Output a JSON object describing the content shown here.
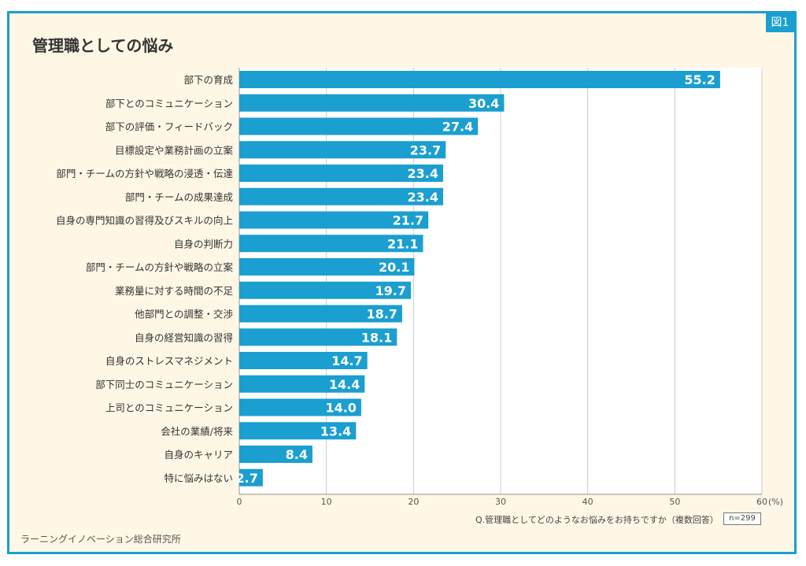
{
  "figure_label": "図1",
  "title": "管理職としての悩み",
  "question": "Q.管理職としてどのようなお悩みをお持ちですか（複数回答）",
  "sample_size": "n=299",
  "source": "ラーニングイノベーション総合研究所",
  "colors": {
    "bar": "#1a9fd0",
    "frame": "#1a9fd0",
    "background": "#fff7e6",
    "plot_background": "#ffffff",
    "grid": "#cccccc",
    "label_text": "#333333",
    "value_text": "#ffffff"
  },
  "chart_data": {
    "type": "bar",
    "orientation": "horizontal",
    "categories": [
      "部下の育成",
      "部下とのコミュニケーション",
      "部下の評価・フィードバック",
      "目標設定や業務計画の立案",
      "部門・チームの方針や戦略の浸透・伝達",
      "部門・チームの成果達成",
      "自身の専門知識の習得及びスキルの向上",
      "自身の判断力",
      "部門・チームの方針や戦略の立案",
      "業務量に対する時間の不足",
      "他部門との調整・交渉",
      "自身の経営知識の習得",
      "自身のストレスマネジメント",
      "部下同士のコミュニケーション",
      "上司とのコミュニケーション",
      "会社の業績/将来",
      "自身のキャリア",
      "特に悩みはない"
    ],
    "values": [
      55.2,
      30.4,
      27.4,
      23.7,
      23.4,
      23.4,
      21.7,
      21.1,
      20.1,
      19.7,
      18.7,
      18.1,
      14.7,
      14.4,
      14.0,
      13.4,
      8.4,
      2.7
    ],
    "value_labels": [
      "55.2",
      "30.4",
      "27.4",
      "23.7",
      "23.4",
      "23.4",
      "21.7",
      "21.1",
      "20.1",
      "19.7",
      "18.7",
      "18.1",
      "14.7",
      "14.4",
      "14.0",
      "13.4",
      "8.4",
      "2.7"
    ],
    "xlim": [
      0,
      60
    ],
    "ticks": [
      0,
      10,
      20,
      30,
      40,
      50,
      60
    ],
    "tick_labels": [
      "0",
      "10",
      "20",
      "30",
      "40",
      "50",
      "60"
    ],
    "unit": "(%)",
    "grid": true
  }
}
